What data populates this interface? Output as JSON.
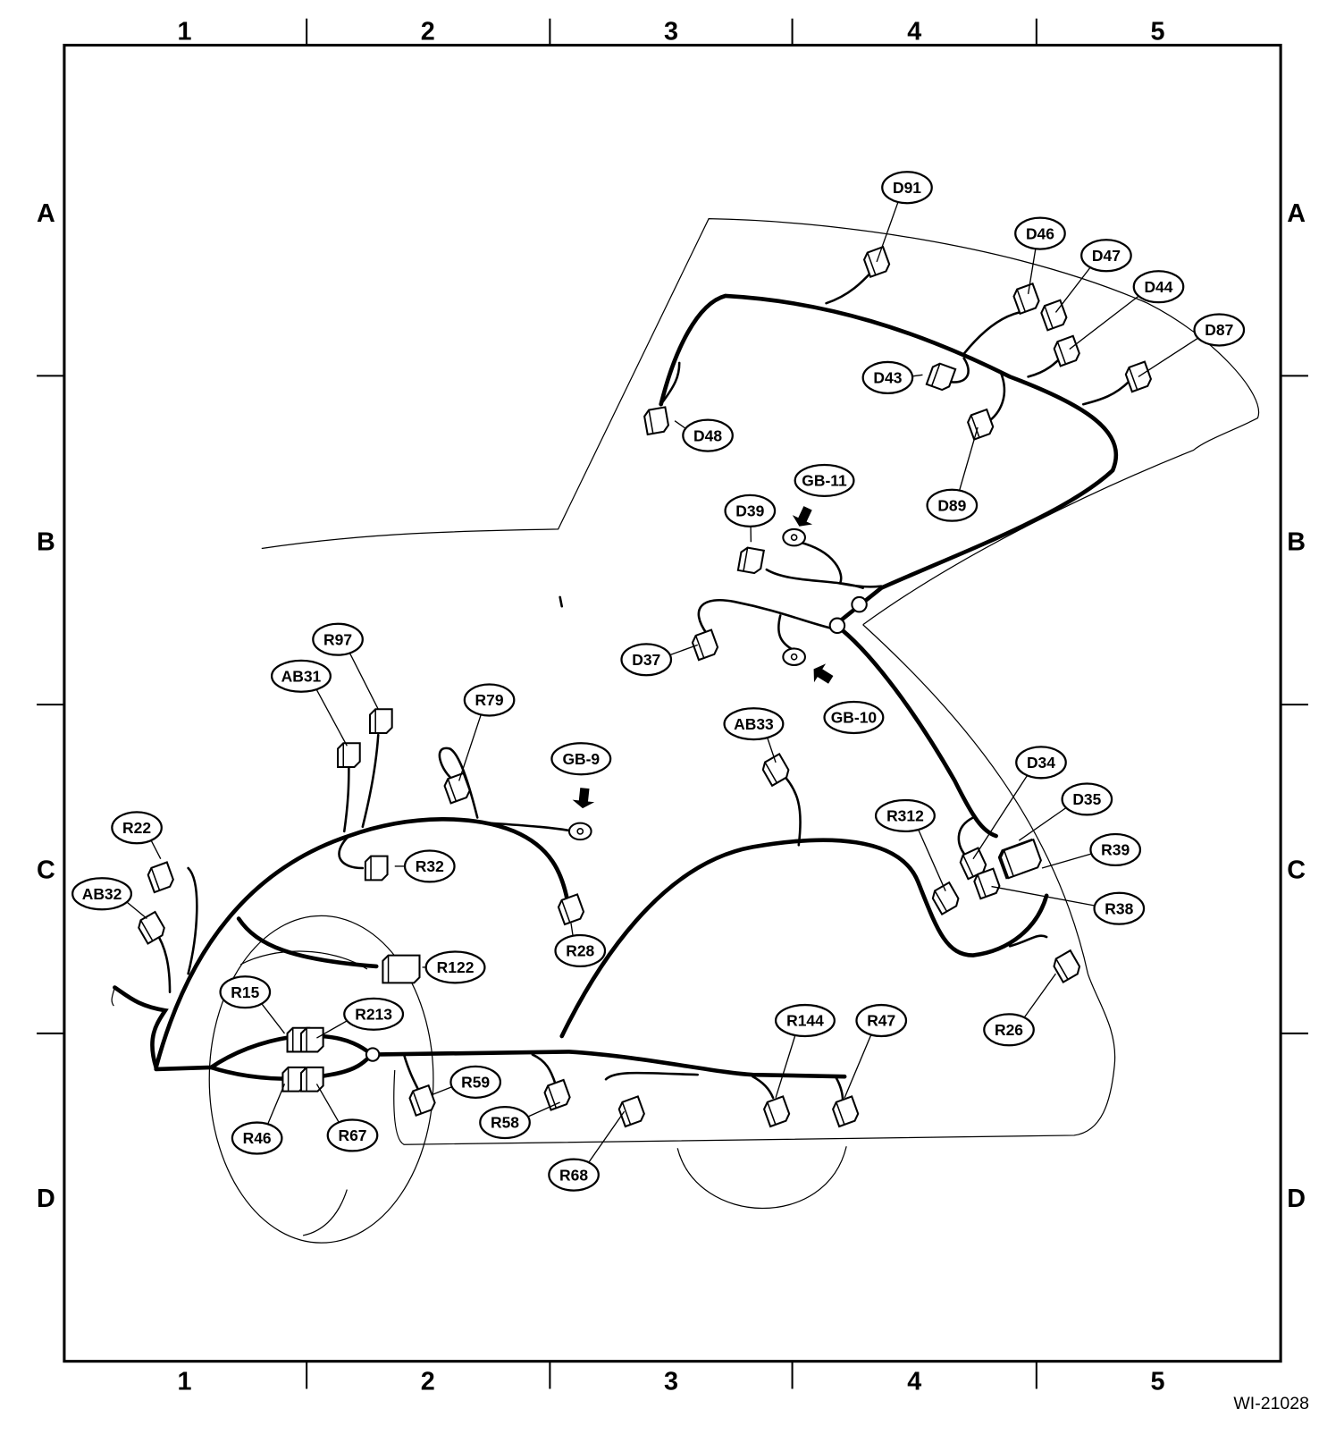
{
  "figure_id": "WI-21028",
  "grid": {
    "columns": [
      "1",
      "2",
      "3",
      "4",
      "5"
    ],
    "rows": [
      "A",
      "B",
      "C",
      "D"
    ]
  },
  "connector_labels": [
    "D91",
    "D46",
    "D47",
    "D44",
    "D87",
    "D43",
    "D48",
    "D89",
    "GB-11",
    "D39",
    "D37",
    "GB-10",
    "R97",
    "AB31",
    "R79",
    "GB-9",
    "AB33",
    "D34",
    "D35",
    "R312",
    "R39",
    "R38",
    "R22",
    "R32",
    "AB32",
    "R28",
    "R122",
    "R15",
    "R213",
    "R144",
    "R47",
    "R26",
    "R59",
    "R58",
    "R46",
    "R67",
    "R68"
  ],
  "ground_point_labels": [
    "GB-9",
    "GB-10",
    "GB-11"
  ],
  "colors": {
    "line": "#000000",
    "background": "#ffffff"
  }
}
